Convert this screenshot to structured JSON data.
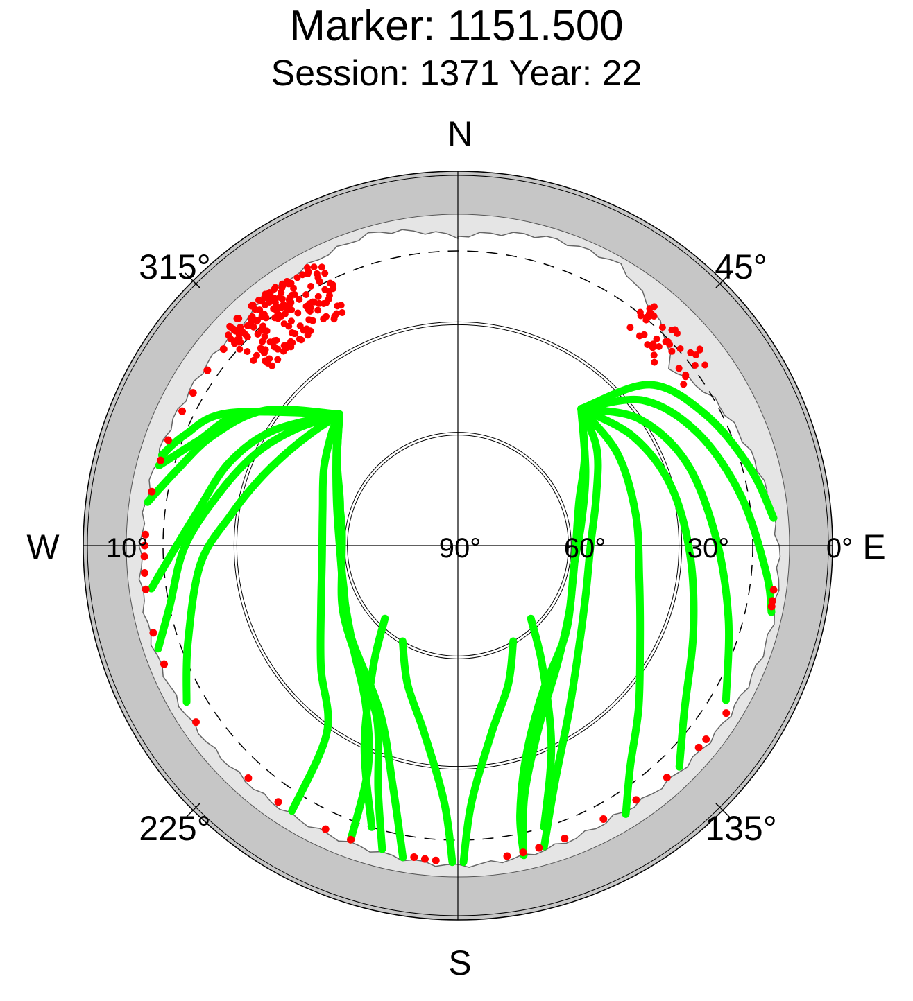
{
  "title": "Marker: 1151.500",
  "subtitle": "Session: 1371 Year: 22",
  "chart_data": {
    "type": "scatter",
    "projection": "polar sky plot (azimuth clockwise from North, elevation 90° at center to 0° at rim)",
    "cardinals": {
      "north": "N",
      "east": "E",
      "south": "S",
      "west": "W"
    },
    "azimuth_labels": [
      "45°",
      "135°",
      "225°",
      "315°"
    ],
    "elevation_labels": [
      "90°",
      "60°",
      "30°",
      "0°",
      "10°"
    ],
    "elevation_rings": [
      60,
      30
    ],
    "elevation_mask_deg": 10,
    "colors": {
      "tracked": "#00ff00",
      "below_mask_or_endpoint": "#ff0000",
      "horizon_obstruction": "#e5e5e5",
      "outer_band": "#c6c6c6"
    },
    "obstruction_profile": {
      "azimuth_deg": [
        0,
        15,
        30,
        45,
        50,
        60,
        75,
        90,
        105,
        120,
        135,
        150,
        165,
        180,
        195,
        210,
        225,
        240,
        255,
        270,
        285,
        300,
        315,
        330,
        345,
        360
      ],
      "elevation_deg": [
        6,
        3,
        2,
        10,
        15,
        10,
        6,
        3,
        2,
        3,
        4,
        5,
        4,
        3,
        4,
        4,
        4,
        3,
        3,
        4,
        5,
        6,
        6,
        4,
        2,
        6
      ]
    },
    "series": [
      {
        "name": "",
        "color": "#00ff00",
        "tracks": [
          [
            [
              318,
              42
            ],
            [
              305,
              50
            ],
            [
              290,
              56
            ],
            [
              270,
              58
            ],
            [
              250,
              57
            ],
            [
              230,
              52
            ],
            [
              205,
              40
            ],
            [
              195,
              22
            ],
            [
              190,
              4
            ]
          ],
          [
            [
              318,
              42
            ],
            [
              300,
              52
            ],
            [
              280,
              58
            ],
            [
              260,
              58
            ],
            [
              240,
              54
            ],
            [
              220,
              48
            ],
            [
              205,
              38
            ],
            [
              198,
              20
            ],
            [
              194,
              5
            ]
          ],
          [
            [
              318,
              42
            ],
            [
              310,
              47
            ],
            [
              290,
              55
            ],
            [
              265,
              58
            ],
            [
              245,
              56
            ],
            [
              225,
              50
            ],
            [
              210,
              40
            ],
            [
              202,
              25
            ],
            [
              200,
              5
            ]
          ],
          [
            [
              318,
              42
            ],
            [
              312,
              44
            ],
            [
              300,
              48
            ],
            [
              285,
              52
            ],
            [
              265,
              53
            ],
            [
              245,
              49
            ],
            [
              228,
              40
            ],
            [
              215,
              28
            ],
            [
              212,
              5
            ]
          ],
          [
            [
              318,
              42
            ],
            [
              308,
              40
            ],
            [
              298,
              37
            ],
            [
              288,
              33
            ],
            [
              278,
              28
            ],
            [
              266,
              20
            ],
            [
              250,
              12
            ],
            [
              240,
              5
            ]
          ],
          [
            [
              318,
              42
            ],
            [
              306,
              36
            ],
            [
              295,
              30
            ],
            [
              283,
              24
            ],
            [
              270,
              16
            ],
            [
              258,
              10
            ],
            [
              251,
              4
            ]
          ],
          [
            [
              318,
              42
            ],
            [
              302,
              31
            ],
            [
              290,
              24
            ],
            [
              278,
              19
            ],
            [
              268,
              12
            ],
            [
              262,
              6
            ]
          ],
          [
            [
              318,
              42
            ],
            [
              305,
              26
            ],
            [
              294,
              17
            ],
            [
              285,
              11
            ],
            [
              278,
              5
            ]
          ],
          [
            [
              318,
              42
            ],
            [
              302,
              22
            ],
            [
              292,
              14
            ],
            [
              285,
              6
            ]
          ],
          [
            [
              318,
              42
            ],
            [
              300,
              18
            ],
            [
              292,
              10
            ],
            [
              287,
              6
            ]
          ],
          [
            [
              42,
              40
            ],
            [
              55,
              48
            ],
            [
              70,
              55
            ],
            [
              90,
              58
            ],
            [
              110,
              57
            ],
            [
              130,
              52
            ],
            [
              150,
              44
            ],
            [
              162,
              30
            ],
            [
              167,
              15
            ],
            [
              168,
              4
            ]
          ],
          [
            [
              42,
              40
            ],
            [
              60,
              50
            ],
            [
              80,
              56
            ],
            [
              100,
              58
            ],
            [
              120,
              55
            ],
            [
              140,
              48
            ],
            [
              156,
              36
            ],
            [
              165,
              20
            ],
            [
              168,
              5
            ]
          ],
          [
            [
              42,
              40
            ],
            [
              55,
              44
            ],
            [
              70,
              50
            ],
            [
              90,
              54
            ],
            [
              110,
              53
            ],
            [
              128,
              48
            ],
            [
              146,
              36
            ],
            [
              158,
              20
            ],
            [
              164,
              5
            ]
          ],
          [
            [
              42,
              40
            ],
            [
              60,
              40
            ],
            [
              80,
              41
            ],
            [
              100,
              40
            ],
            [
              118,
              34
            ],
            [
              132,
              24
            ],
            [
              142,
              14
            ],
            [
              148,
              4
            ]
          ],
          [
            [
              42,
              40
            ],
            [
              58,
              34
            ],
            [
              74,
              30
            ],
            [
              92,
              27
            ],
            [
              110,
              22
            ],
            [
              126,
              14
            ],
            [
              135,
              5
            ]
          ],
          [
            [
              42,
              40
            ],
            [
              55,
              30
            ],
            [
              70,
              24
            ],
            [
              88,
              20
            ],
            [
              105,
              14
            ],
            [
              120,
              6
            ]
          ],
          [
            [
              42,
              40
            ],
            [
              52,
              26
            ],
            [
              65,
              18
            ],
            [
              80,
              12
            ],
            [
              95,
              6
            ],
            [
              102,
              3
            ]
          ],
          [
            [
              42,
              40
            ],
            [
              50,
              22
            ],
            [
              62,
              14
            ],
            [
              75,
              8
            ],
            [
              85,
              4
            ]
          ],
          [
            [
              210,
              60
            ],
            [
              200,
              50
            ],
            [
              190,
              38
            ],
            [
              183,
              20
            ],
            [
              181,
              4
            ]
          ],
          [
            [
              150,
              60
            ],
            [
              160,
              50
            ],
            [
              170,
              38
            ],
            [
              177,
              20
            ],
            [
              179,
              4
            ]
          ],
          [
            [
              225,
              62
            ],
            [
              215,
              50
            ],
            [
              205,
              30
            ],
            [
              197,
              10
            ]
          ],
          [
            [
              135,
              62
            ],
            [
              145,
              50
            ],
            [
              155,
              30
            ],
            [
              163,
              10
            ]
          ]
        ]
      },
      {
        "name": "",
        "color": "#ff0000",
        "clusters": [
          {
            "azimuth_range": [
              312,
              335
            ],
            "elevation_range": [
              4,
              20
            ]
          },
          {
            "azimuth_range": [
              38,
              55
            ],
            "elevation_range": [
              5,
              18
            ]
          }
        ],
        "endpoints_azimuth_deg": [
          98,
          100,
          101,
          122,
          128,
          130,
          138,
          145,
          152,
          160,
          165,
          168,
          171,
          184,
          186,
          188,
          200,
          205,
          215,
          222,
          236,
          248,
          254,
          262,
          265,
          268,
          270,
          272,
          280,
          286,
          290,
          296,
          300,
          305,
          310
        ]
      }
    ]
  }
}
